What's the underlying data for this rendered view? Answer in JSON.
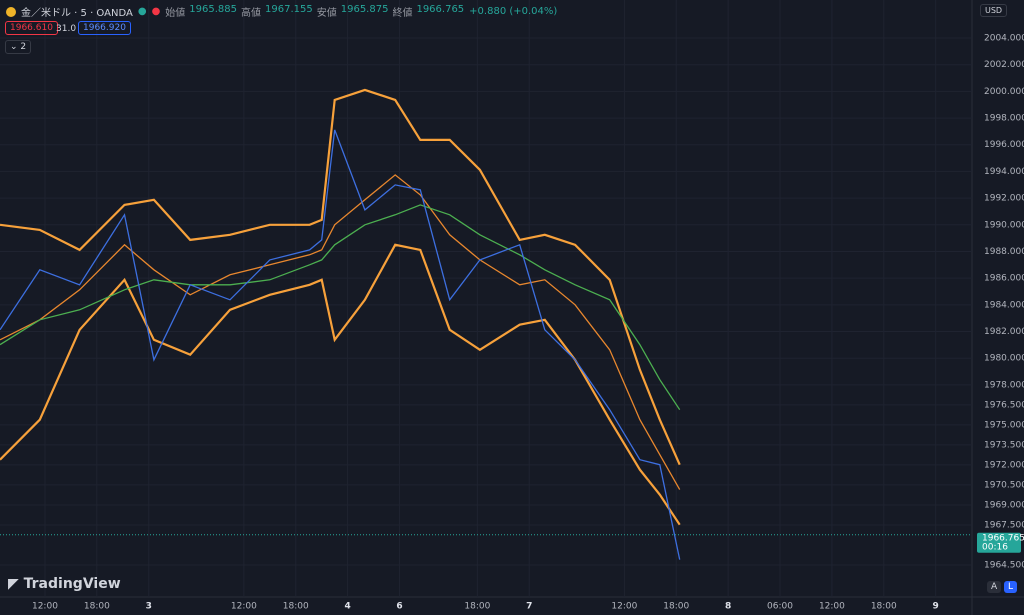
{
  "header": {
    "symbol": "金／米ドル · 5 · OANDA",
    "ohlc": [
      {
        "label": "始値",
        "value": "1965.885"
      },
      {
        "label": "高値",
        "value": "1967.155"
      },
      {
        "label": "安値",
        "value": "1965.875"
      },
      {
        "label": "終値",
        "value": "1966.765"
      }
    ],
    "change": "+0.880 (+0.04%)",
    "bid": "1966.610",
    "spread": "31.0",
    "ask": "1966.920",
    "indicators": "2"
  },
  "currency": "USD",
  "last_price": {
    "value": 1966.765,
    "countdown": "00:16"
  },
  "watermark": "TradingView",
  "scale_buttons": [
    "A",
    "L"
  ],
  "chart_data": {
    "type": "line",
    "x": [
      6.8,
      11.4,
      16.0,
      21.2,
      24.6,
      28.8,
      33.4,
      38.0,
      42.6,
      44.0,
      45.5,
      49.0,
      52.5,
      55.4,
      58.8,
      62.3,
      66.9,
      69.8,
      73.3,
      77.3,
      80.8,
      83.1,
      85.4
    ],
    "xlim": [
      6.8,
      119.2
    ],
    "xticks": [
      {
        "value": 12,
        "label": "12:00"
      },
      {
        "value": 18,
        "label": "18:00"
      },
      {
        "value": 24,
        "label": "3"
      },
      {
        "value": 35,
        "label": "12:00"
      },
      {
        "value": 41,
        "label": "18:00"
      },
      {
        "value": 47,
        "label": "4"
      },
      {
        "value": 53,
        "label": "6"
      },
      {
        "value": 62,
        "label": "18:00"
      },
      {
        "value": 68,
        "label": "7"
      },
      {
        "value": 79,
        "label": "12:00"
      },
      {
        "value": 85,
        "label": "18:00"
      },
      {
        "value": 91,
        "label": "8"
      },
      {
        "value": 97,
        "label": "06:00"
      },
      {
        "value": 103,
        "label": "12:00"
      },
      {
        "value": 109,
        "label": "18:00"
      },
      {
        "value": 115,
        "label": "9"
      }
    ],
    "ylim": [
      1962.1,
      2006.85
    ],
    "yticks": [
      {
        "value": 2004,
        "label": "2004.000"
      },
      {
        "value": 2002,
        "label": "2002.000"
      },
      {
        "value": 2000,
        "label": "2000.000"
      },
      {
        "value": 1998,
        "label": "1998.000"
      },
      {
        "value": 1996,
        "label": "1996.000"
      },
      {
        "value": 1994,
        "label": "1994.000"
      },
      {
        "value": 1992,
        "label": "1992.000"
      },
      {
        "value": 1990,
        "label": "1990.000"
      },
      {
        "value": 1988,
        "label": "1988.000"
      },
      {
        "value": 1986,
        "label": "1986.000"
      },
      {
        "value": 1984,
        "label": "1984.000"
      },
      {
        "value": 1982,
        "label": "1982.000"
      },
      {
        "value": 1980,
        "label": "1980.000"
      },
      {
        "value": 1978,
        "label": "1978.000"
      },
      {
        "value": 1976.5,
        "label": "1976.500"
      },
      {
        "value": 1975,
        "label": "1975.000"
      },
      {
        "value": 1973.5,
        "label": "1973.500"
      },
      {
        "value": 1972,
        "label": "1972.000"
      },
      {
        "value": 1970.5,
        "label": "1970.500"
      },
      {
        "value": 1969,
        "label": "1969.000"
      },
      {
        "value": 1967.5,
        "label": "1967.500"
      },
      {
        "value": 1964.5,
        "label": "1964.500"
      }
    ],
    "grid": true,
    "series": [
      {
        "color": "#f7a13b",
        "values": [
          1990.0,
          1989.62,
          1988.12,
          1991.49,
          1991.87,
          1988.87,
          1989.25,
          1990.0,
          1990.0,
          1990.37,
          1999.36,
          2000.11,
          1999.36,
          1996.36,
          1996.36,
          1994.12,
          1988.87,
          1989.25,
          1988.5,
          1985.88,
          1979.13,
          1975.39,
          1972.02
        ]
      },
      {
        "color": "#f7a13b",
        "values": [
          1972.39,
          1975.39,
          1982.13,
          1985.88,
          1981.38,
          1980.26,
          1983.63,
          1984.75,
          1985.5,
          1985.88,
          1981.38,
          1984.38,
          1988.5,
          1988.12,
          1982.13,
          1980.63,
          1982.51,
          1982.88,
          1979.88,
          1975.39,
          1971.64,
          1969.77,
          1967.52
        ]
      },
      {
        "color": "#e8872e",
        "values": [
          1981.38,
          1982.88,
          1985.13,
          1988.5,
          1986.63,
          1984.75,
          1986.25,
          1987.0,
          1987.75,
          1988.12,
          1990.0,
          1991.87,
          1993.74,
          1992.24,
          1989.25,
          1987.37,
          1985.5,
          1985.88,
          1984.0,
          1980.63,
          1975.39,
          1972.77,
          1970.15
        ]
      },
      {
        "color": "#4caf50",
        "values": [
          1981.01,
          1982.88,
          1983.63,
          1985.13,
          1985.88,
          1985.5,
          1985.5,
          1985.88,
          1987.0,
          1987.37,
          1988.5,
          1990.0,
          1990.75,
          1991.49,
          1990.75,
          1989.25,
          1987.75,
          1986.63,
          1985.5,
          1984.38,
          1981.01,
          1978.39,
          1976.14
        ]
      },
      {
        "color": "#3d6fe0",
        "values": [
          1982.13,
          1986.63,
          1985.5,
          1990.75,
          1979.88,
          1985.5,
          1984.38,
          1987.37,
          1988.12,
          1988.87,
          1997.11,
          1991.12,
          1992.99,
          1992.62,
          1984.38,
          1987.37,
          1988.5,
          1982.13,
          1979.88,
          1976.14,
          1972.39,
          1972.02,
          1964.9
        ]
      }
    ]
  }
}
